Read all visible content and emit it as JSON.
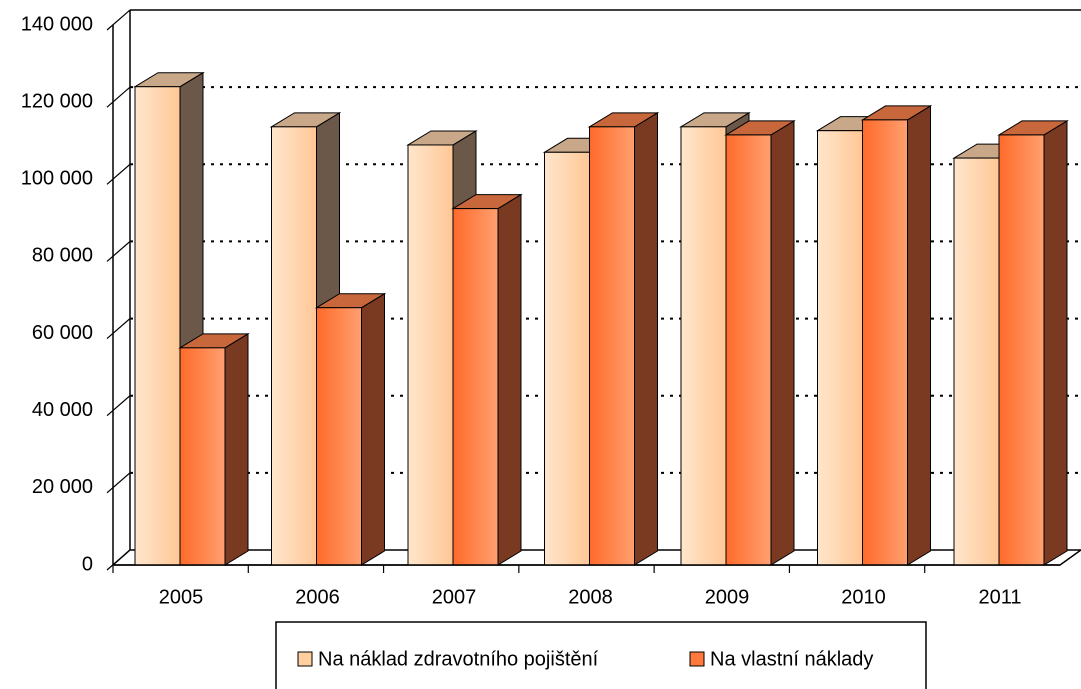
{
  "chart_data": {
    "type": "bar3d",
    "categories": [
      "2005",
      "2006",
      "2007",
      "2008",
      "2009",
      "2010",
      "2011"
    ],
    "series": [
      {
        "name": "Na náklad zdravotního pojištění",
        "color": "#ffcfa0",
        "values": [
          124000,
          113600,
          108900,
          107000,
          113600,
          112600,
          105500
        ]
      },
      {
        "name": "Na vlastní náklady",
        "color": "#ff7a3c",
        "values": [
          56300,
          66700,
          92400,
          113600,
          111500,
          115400,
          111500
        ]
      }
    ],
    "ylim": [
      0,
      140000
    ],
    "yticks": [
      {
        "value": 0,
        "label": "0"
      },
      {
        "value": 20000,
        "label": "20 000"
      },
      {
        "value": 40000,
        "label": "40 000"
      },
      {
        "value": 60000,
        "label": "60 000"
      },
      {
        "value": 80000,
        "label": "80 000"
      },
      {
        "value": 100000,
        "label": "100 000"
      },
      {
        "value": 120000,
        "label": "120 000"
      },
      {
        "value": 140000,
        "label": "140 000"
      }
    ],
    "grid": true
  }
}
